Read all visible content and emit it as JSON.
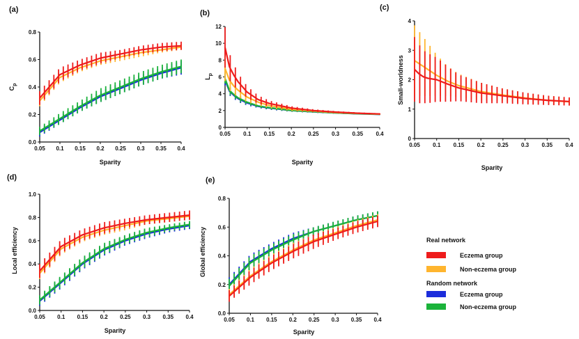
{
  "colors": {
    "eczema_real": "#ee1c1c",
    "non_eczema_real": "#ffb52e",
    "eczema_random": "#1c2ddb",
    "non_eczema_random": "#1bb33a"
  },
  "legend": {
    "real_title": "Real network",
    "real_items": [
      "Eczema group",
      "Non-eczema group"
    ],
    "random_title": "Random network",
    "random_items": [
      "Eczema group",
      "Non-eczema group"
    ]
  },
  "chart_data": [
    {
      "panel": "(a)",
      "type": "line",
      "xlabel": "Sparity",
      "ylabel": "Cp",
      "xlim": [
        0.05,
        0.4
      ],
      "ylim": [
        0,
        0.8
      ],
      "xticks": [
        "0.05",
        "0.1",
        "0.15",
        "0.2",
        "0.25",
        "0.3",
        "0.35",
        "0.4"
      ],
      "yticks": [
        "0.0",
        "0.2",
        "0.4",
        "0.6",
        "0.8"
      ],
      "x": [
        0.05,
        0.1,
        0.15,
        0.2,
        0.25,
        0.3,
        0.35,
        0.4
      ],
      "series": [
        {
          "name": "Eczema group (random)",
          "key": "eczema_random",
          "values": [
            0.07,
            0.16,
            0.25,
            0.33,
            0.39,
            0.45,
            0.5,
            0.54
          ],
          "err": [
            0.03,
            0.03,
            0.03,
            0.04,
            0.04,
            0.04,
            0.04,
            0.05
          ]
        },
        {
          "name": "Non-eczema group (random)",
          "key": "non_eczema_random",
          "values": [
            0.08,
            0.17,
            0.26,
            0.34,
            0.4,
            0.46,
            0.51,
            0.55
          ],
          "err": [
            0.03,
            0.04,
            0.04,
            0.05,
            0.05,
            0.05,
            0.05,
            0.05
          ]
        },
        {
          "name": "Non-eczema group (real)",
          "key": "non_eczema_real",
          "values": [
            0.3,
            0.47,
            0.54,
            0.59,
            0.62,
            0.65,
            0.67,
            0.69
          ],
          "err": [
            0.04,
            0.04,
            0.03,
            0.03,
            0.03,
            0.03,
            0.02,
            0.02
          ]
        },
        {
          "name": "Eczema group (real)",
          "key": "eczema_real",
          "values": [
            0.32,
            0.49,
            0.56,
            0.61,
            0.64,
            0.67,
            0.69,
            0.7
          ],
          "err": [
            0.05,
            0.05,
            0.04,
            0.04,
            0.03,
            0.03,
            0.03,
            0.03
          ]
        }
      ]
    },
    {
      "panel": "(b)",
      "type": "line",
      "xlabel": "Sparity",
      "ylabel": "Lp",
      "xlim": [
        0.05,
        0.4
      ],
      "ylim": [
        0,
        12
      ],
      "xticks": [
        "0.05",
        "0.1",
        "0.15",
        "0.2",
        "0.25",
        "0.3",
        "0.35",
        "0.4"
      ],
      "yticks": [
        "0",
        "2",
        "4",
        "6",
        "8",
        "10",
        "12"
      ],
      "x": [
        0.05,
        0.06,
        0.07,
        0.08,
        0.1,
        0.125,
        0.15,
        0.2,
        0.25,
        0.3,
        0.35,
        0.4
      ],
      "series": [
        {
          "name": "Eczema group (random)",
          "key": "eczema_random",
          "values": [
            5.6,
            4.3,
            3.8,
            3.4,
            2.9,
            2.5,
            2.3,
            2.0,
            1.85,
            1.72,
            1.62,
            1.55
          ],
          "err": [
            0.6,
            0.5,
            0.4,
            0.4,
            0.3,
            0.2,
            0.2,
            0.15,
            0.12,
            0.1,
            0.08,
            0.08
          ]
        },
        {
          "name": "Non-eczema group (random)",
          "key": "non_eczema_random",
          "values": [
            5.8,
            4.4,
            3.9,
            3.5,
            3.0,
            2.55,
            2.35,
            2.02,
            1.87,
            1.73,
            1.63,
            1.56
          ],
          "err": [
            0.6,
            0.5,
            0.4,
            0.4,
            0.3,
            0.2,
            0.2,
            0.15,
            0.12,
            0.1,
            0.08,
            0.08
          ]
        },
        {
          "name": "Non-eczema group (real)",
          "key": "non_eczema_real",
          "values": [
            7.0,
            5.6,
            4.9,
            4.4,
            3.6,
            3.0,
            2.6,
            2.15,
            1.95,
            1.78,
            1.67,
            1.58
          ],
          "err": [
            1.5,
            1.2,
            1.0,
            0.8,
            0.6,
            0.4,
            0.3,
            0.2,
            0.15,
            0.12,
            0.1,
            0.08
          ]
        },
        {
          "name": "Eczema group (real)",
          "key": "eczema_real",
          "values": [
            9.5,
            7.2,
            6.2,
            5.4,
            4.2,
            3.3,
            2.85,
            2.3,
            2.0,
            1.82,
            1.69,
            1.6
          ],
          "err": [
            2.4,
            1.6,
            1.3,
            1.0,
            0.7,
            0.5,
            0.35,
            0.22,
            0.16,
            0.12,
            0.1,
            0.08
          ]
        }
      ]
    },
    {
      "panel": "(c)",
      "type": "line",
      "xlabel": "Sparity",
      "ylabel": "Small-worldness",
      "xlim": [
        0.05,
        0.4
      ],
      "ylim": [
        0,
        4
      ],
      "xticks": [
        "0.05",
        "0.1",
        "0.15",
        "0.2",
        "0.25",
        "0.3",
        "0.35",
        "0.4"
      ],
      "yticks": [
        "0",
        "1",
        "2",
        "3",
        "4"
      ],
      "x": [
        0.05,
        0.06,
        0.07,
        0.08,
        0.1,
        0.125,
        0.15,
        0.2,
        0.25,
        0.3,
        0.35,
        0.4
      ],
      "series": [
        {
          "name": "Non-eczema group (real)",
          "key": "non_eczema_real",
          "values": [
            2.65,
            2.55,
            2.45,
            2.35,
            2.15,
            1.95,
            1.8,
            1.6,
            1.48,
            1.38,
            1.3,
            1.25
          ],
          "err": [
            1.2,
            1.1,
            1.0,
            0.9,
            0.7,
            0.5,
            0.4,
            0.3,
            0.22,
            0.18,
            0.15,
            0.12
          ]
        },
        {
          "name": "Eczema group (real)",
          "key": "eczema_real",
          "values": [
            2.35,
            2.2,
            2.1,
            2.05,
            2.0,
            1.85,
            1.72,
            1.55,
            1.45,
            1.36,
            1.3,
            1.26
          ],
          "err": [
            1.1,
            1.0,
            0.9,
            0.85,
            0.75,
            0.6,
            0.45,
            0.35,
            0.25,
            0.2,
            0.16,
            0.14
          ]
        }
      ]
    },
    {
      "panel": "(d)",
      "type": "line",
      "xlabel": "Sparity",
      "ylabel": "Local efficiency",
      "xlim": [
        0.05,
        0.4
      ],
      "ylim": [
        0,
        1.0
      ],
      "xticks": [
        "0.05",
        "0.1",
        "0.15",
        "0.2",
        "0.25",
        "0.3",
        "0.35",
        "0.4"
      ],
      "yticks": [
        "0.0",
        "0.2",
        "0.4",
        "0.6",
        "0.8",
        "1.0"
      ],
      "x": [
        0.05,
        0.1,
        0.15,
        0.2,
        0.25,
        0.3,
        0.35,
        0.4
      ],
      "series": [
        {
          "name": "Eczema group (random)",
          "key": "eczema_random",
          "values": [
            0.08,
            0.24,
            0.4,
            0.52,
            0.6,
            0.66,
            0.7,
            0.73
          ],
          "err": [
            0.04,
            0.05,
            0.05,
            0.05,
            0.04,
            0.04,
            0.03,
            0.03
          ]
        },
        {
          "name": "Non-eczema group (random)",
          "key": "non_eczema_random",
          "values": [
            0.09,
            0.25,
            0.41,
            0.53,
            0.61,
            0.67,
            0.71,
            0.74
          ],
          "err": [
            0.04,
            0.05,
            0.05,
            0.05,
            0.04,
            0.04,
            0.03,
            0.03
          ]
        },
        {
          "name": "Non-eczema group (real)",
          "key": "non_eczema_real",
          "values": [
            0.32,
            0.53,
            0.63,
            0.69,
            0.73,
            0.77,
            0.79,
            0.81
          ],
          "err": [
            0.05,
            0.05,
            0.04,
            0.04,
            0.04,
            0.03,
            0.03,
            0.03
          ]
        },
        {
          "name": "Eczema group (real)",
          "key": "eczema_real",
          "values": [
            0.34,
            0.55,
            0.65,
            0.71,
            0.75,
            0.78,
            0.8,
            0.82
          ],
          "err": [
            0.06,
            0.06,
            0.05,
            0.05,
            0.04,
            0.04,
            0.04,
            0.04
          ]
        }
      ]
    },
    {
      "panel": "(e)",
      "type": "line",
      "xlabel": "Sparity",
      "ylabel": "Global efficiency",
      "xlim": [
        0.05,
        0.4
      ],
      "ylim": [
        0,
        0.8
      ],
      "xticks": [
        "0.05",
        "0.1",
        "0.15",
        "0.2",
        "0.25",
        "0.3",
        "0.35",
        "0.4"
      ],
      "yticks": [
        "0.0",
        "0.2",
        "0.4",
        "0.6",
        "0.8"
      ],
      "x": [
        0.05,
        0.1,
        0.15,
        0.2,
        0.25,
        0.3,
        0.35,
        0.4
      ],
      "series": [
        {
          "name": "Eczema group (random)",
          "key": "eczema_random",
          "values": [
            0.2,
            0.36,
            0.45,
            0.52,
            0.57,
            0.61,
            0.65,
            0.68
          ],
          "err": [
            0.05,
            0.05,
            0.04,
            0.04,
            0.03,
            0.03,
            0.03,
            0.03
          ]
        },
        {
          "name": "Non-eczema group (random)",
          "key": "non_eczema_random",
          "values": [
            0.19,
            0.35,
            0.44,
            0.51,
            0.57,
            0.61,
            0.65,
            0.68
          ],
          "err": [
            0.05,
            0.05,
            0.04,
            0.04,
            0.03,
            0.03,
            0.03,
            0.03
          ]
        },
        {
          "name": "Non-eczema group (real)",
          "key": "non_eczema_real",
          "values": [
            0.13,
            0.26,
            0.36,
            0.44,
            0.51,
            0.56,
            0.61,
            0.65
          ],
          "err": [
            0.04,
            0.05,
            0.05,
            0.05,
            0.04,
            0.04,
            0.04,
            0.04
          ]
        },
        {
          "name": "Eczema group (real)",
          "key": "eczema_real",
          "values": [
            0.12,
            0.25,
            0.35,
            0.43,
            0.5,
            0.55,
            0.6,
            0.64
          ],
          "err": [
            0.04,
            0.05,
            0.05,
            0.05,
            0.05,
            0.04,
            0.04,
            0.04
          ]
        }
      ]
    }
  ]
}
